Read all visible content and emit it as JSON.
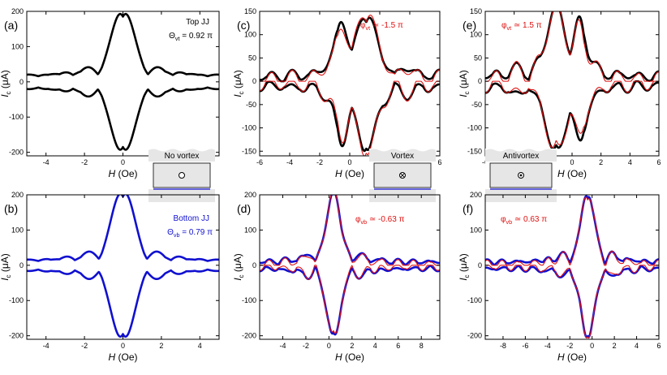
{
  "figure": {
    "colors": {
      "measured": "#000000",
      "bottom": "#1010d0",
      "fit": "#e01010",
      "axis": "#000000",
      "inset_fill": "#e6e6e6"
    },
    "xlabel_text": "H (Oe)",
    "ylabel_main": "I",
    "ylabel_sub": "c",
    "ylabel_unit": " (μA)"
  },
  "chart_data": [
    {
      "id": "a",
      "panel_label": "(a)",
      "type": "line",
      "xlabel": "H (Oe)",
      "ylabel": "Ic (μA)",
      "xlim": [
        -5,
        5
      ],
      "ylim": [
        -210,
        200
      ],
      "xticks": [
        -4,
        -2,
        0,
        2,
        4
      ],
      "yticks": [
        -200,
        -100,
        0,
        100,
        200
      ],
      "annotations": [
        {
          "text": "Top JJ",
          "color": "#000000"
        },
        {
          "main": "Θ",
          "sub": "vt",
          "rest": " = 0.92 π",
          "color": "#000000"
        }
      ],
      "inset": {
        "label": "No vortex",
        "symbol": "open-circle"
      },
      "series": [
        {
          "role": "measured",
          "color": "#000000",
          "peak_x": 0.0,
          "peak_y": 185,
          "lobe_sep": 1.3,
          "side_amp": 38,
          "env_width": 2.6,
          "floor": 14,
          "alt": 0
        }
      ]
    },
    {
      "id": "c",
      "panel_label": "(c)",
      "type": "line",
      "xlabel": "H (Oe)",
      "ylabel": "Ic (μA)",
      "xlim": [
        -6,
        6
      ],
      "ylim": [
        -160,
        150
      ],
      "xticks": [
        -6,
        -4,
        -2,
        0,
        2,
        4,
        6
      ],
      "yticks": [
        -150,
        -100,
        -50,
        0,
        50,
        100,
        150
      ],
      "annotations": [
        {
          "main": "φ",
          "sub": "vt",
          "rest": " ≃ -1.5 π",
          "color": "#e01010"
        }
      ],
      "inset": {
        "label": "Vortex",
        "symbol": "cross-circle"
      },
      "series": [
        {
          "role": "measured",
          "color": "#000000",
          "peak_x": 1.1,
          "peak_y": 135,
          "second_x": -0.6,
          "second_y": 115,
          "lobe_sep": 1.9,
          "side_amp": 40,
          "env_width": 3.2,
          "floor": 6,
          "alt": 9
        },
        {
          "role": "fit",
          "color": "#e01010",
          "peak_x": 1.1,
          "peak_y": 140,
          "second_x": -0.6,
          "second_y": 100,
          "lobe_sep": 1.9,
          "side_amp": 48,
          "env_width": 3.2,
          "floor": 0,
          "alt": 14
        }
      ]
    },
    {
      "id": "e",
      "panel_label": "(e)",
      "type": "line",
      "xlabel": "H (Oe)",
      "ylabel": "Ic (μA)",
      "xlim": [
        -6,
        6
      ],
      "ylim": [
        -160,
        150
      ],
      "xticks": [
        -6,
        -4,
        -2,
        0,
        2,
        4,
        6
      ],
      "yticks": [
        -150,
        -100,
        -50,
        0,
        50,
        100,
        150
      ],
      "annotations": [
        {
          "main": "φ",
          "sub": "vt",
          "rest": " ≃ 1.5 π",
          "color": "#e01010"
        }
      ],
      "inset": {
        "label": "Antivortex",
        "symbol": "dot-circle"
      },
      "series": [
        {
          "role": "measured",
          "color": "#000000",
          "peak_x": -1.1,
          "peak_y": 145,
          "second_x": 0.6,
          "second_y": 115,
          "lobe_sep": 1.9,
          "side_amp": 40,
          "env_width": 3.2,
          "floor": 6,
          "alt": 9
        },
        {
          "role": "fit",
          "color": "#e01010",
          "peak_x": -1.1,
          "peak_y": 140,
          "second_x": 0.6,
          "second_y": 100,
          "lobe_sep": 1.9,
          "side_amp": 48,
          "env_width": 3.2,
          "floor": 0,
          "alt": 14
        }
      ]
    },
    {
      "id": "b",
      "panel_label": "(b)",
      "type": "line",
      "xlabel": "H (Oe)",
      "ylabel": "Ic (μA)",
      "xlim": [
        -5,
        5
      ],
      "ylim": [
        -210,
        200
      ],
      "xticks": [
        -4,
        -2,
        0,
        2,
        4
      ],
      "yticks": [
        -200,
        -100,
        0,
        100,
        200
      ],
      "annotations": [
        {
          "text": "Bottom JJ",
          "color": "#1010d0"
        },
        {
          "main": "Θ",
          "sub": "vb",
          "rest": " = 0.79 π",
          "color": "#1010d0"
        }
      ],
      "series": [
        {
          "role": "measured",
          "color": "#1010d0",
          "peak_x": 0.0,
          "peak_y": 195,
          "lobe_sep": 1.25,
          "side_amp": 38,
          "env_width": 2.6,
          "floor": 10,
          "alt": 0
        }
      ]
    },
    {
      "id": "d",
      "panel_label": "(d)",
      "type": "line",
      "xlabel": "H (Oe)",
      "ylabel": "Ic (μA)",
      "xlim": [
        -6,
        9.6
      ],
      "ylim": [
        -210,
        200
      ],
      "xticks": [
        -4,
        -2,
        0,
        2,
        4,
        6,
        8
      ],
      "yticks": [
        -200,
        -100,
        0,
        100,
        200
      ],
      "annotations": [
        {
          "main": "φ",
          "sub": "vb",
          "rest": " ≃ -0.63 π",
          "color": "#e01010"
        }
      ],
      "series": [
        {
          "role": "measured",
          "color": "#1010d0",
          "peak_x": 0.4,
          "peak_y": 190,
          "lobe_sep": 1.6,
          "side_amp": 42,
          "env_width": 3.0,
          "floor": 6,
          "alt": 5
        },
        {
          "role": "fit",
          "color": "#e01010",
          "peak_x": 0.4,
          "peak_y": 188,
          "lobe_sep": 1.6,
          "side_amp": 48,
          "env_width": 3.0,
          "floor": 0,
          "alt": 9
        }
      ]
    },
    {
      "id": "f",
      "panel_label": "(f)",
      "type": "line",
      "xlabel": "H (Oe)",
      "ylabel": "Ic (μA)",
      "xlim": [
        -9.6,
        6
      ],
      "ylim": [
        -210,
        200
      ],
      "xticks": [
        -8,
        -6,
        -4,
        -2,
        0,
        2,
        4,
        6
      ],
      "yticks": [
        -200,
        -100,
        0,
        100,
        200
      ],
      "annotations": [
        {
          "main": "φ",
          "sub": "vb",
          "rest": " ≃ 0.63 π",
          "color": "#e01010"
        }
      ],
      "series": [
        {
          "role": "measured",
          "color": "#1010d0",
          "peak_x": -0.4,
          "peak_y": 190,
          "lobe_sep": 1.6,
          "side_amp": 42,
          "env_width": 3.0,
          "floor": 6,
          "alt": 5
        },
        {
          "role": "fit",
          "color": "#e01010",
          "peak_x": -0.4,
          "peak_y": 188,
          "lobe_sep": 1.6,
          "side_amp": 48,
          "env_width": 3.0,
          "floor": 0,
          "alt": 9
        }
      ]
    }
  ]
}
